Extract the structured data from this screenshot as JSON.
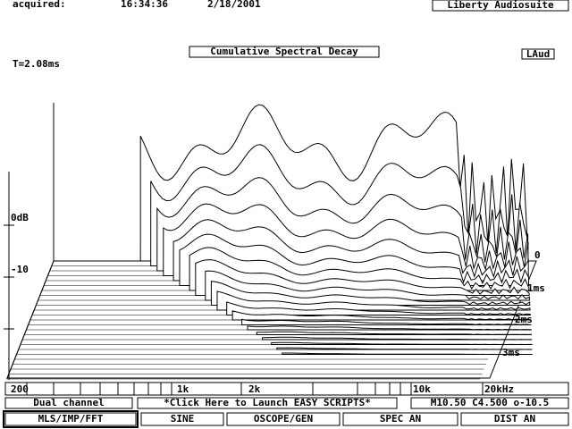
{
  "header": {
    "acquired_label": "acquired:",
    "time": "16:34:36",
    "date": "2/18/2001",
    "app": "Liberty Audiosuite"
  },
  "plot": {
    "title": "Cumulative Spectral Decay",
    "badge": "LAud",
    "time_label": "T=2.08ms",
    "level_labels": [
      "0dB",
      "-10"
    ],
    "depth_labels": [
      "0",
      "1ms",
      "2ms",
      "3ms"
    ],
    "freq_labels": [
      "200",
      "1k",
      "2k",
      "10k",
      "20kHz"
    ]
  },
  "status": {
    "mode": "Dual channel",
    "scripts": "*Click Here to Launch EASY SCRIPTS*",
    "params": "M10.50 C4.500 o-10.5"
  },
  "buttons": [
    "MLS/IMP/FFT",
    "SINE",
    "OSCOPE/GEN",
    "SPEC AN",
    "DIST AN"
  ]
}
